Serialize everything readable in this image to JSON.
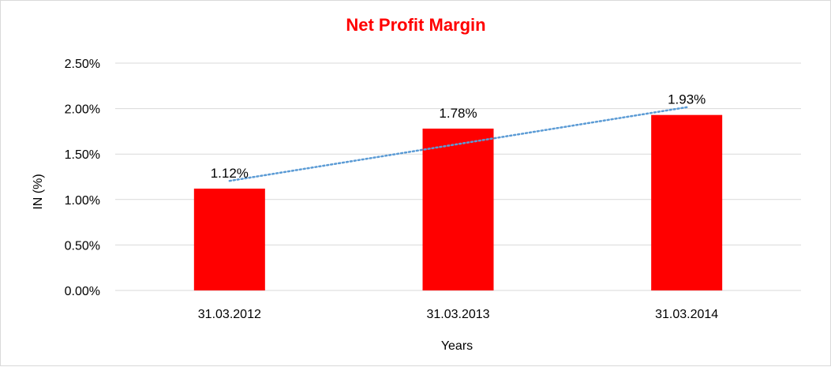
{
  "chart_data": {
    "type": "bar",
    "title": "Net Profit Margin",
    "xlabel": "Years",
    "ylabel": "IN (%)",
    "categories": [
      "31.03.2012",
      "31.03.2013",
      "31.03.2014"
    ],
    "values": [
      1.12,
      1.78,
      1.93
    ],
    "data_labels": [
      "1.12%",
      "1.78%",
      "1.93%"
    ],
    "ylim": [
      0,
      2.5
    ],
    "y_ticks": [
      0,
      0.5,
      1.0,
      1.5,
      2.0,
      2.5
    ],
    "y_tick_labels": [
      "0.00%",
      "0.50%",
      "1.00%",
      "1.50%",
      "2.00%",
      "2.50%"
    ],
    "grid": true,
    "trendline": {
      "type": "linear",
      "style": "dotted"
    },
    "colors": {
      "bar": "#ff0000",
      "title": "#ff0000",
      "trendline": "#5b9bd5",
      "grid": "#d9d9d9"
    }
  }
}
